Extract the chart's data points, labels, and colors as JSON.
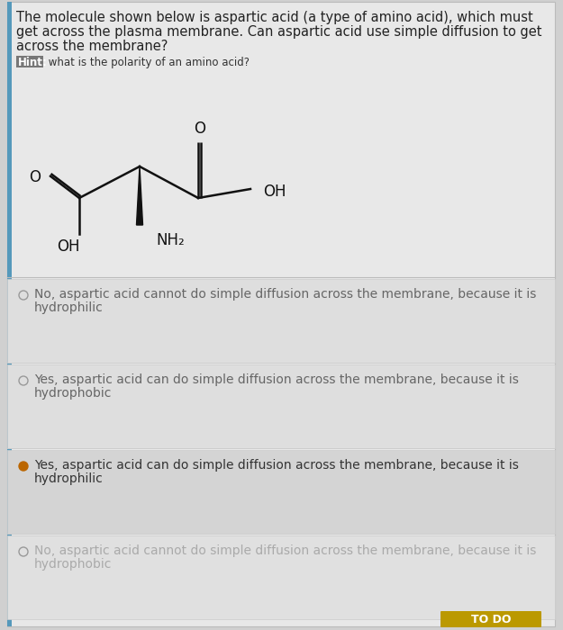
{
  "bg_color": "#d0d0d0",
  "card_bg": "#e8e8e8",
  "white_area_bg": "#e8e8e8",
  "option1_bg": "#dedede",
  "option2_bg": "#dedede",
  "option3_bg": "#d4d4d4",
  "option4_bg": "#e0e0e0",
  "left_bar_color": "#5599bb",
  "question_line1": "The molecule shown below is aspartic acid (a type of amino acid), which must",
  "question_line2": "get across the plasma membrane. Can aspartic acid use simple diffusion to get",
  "question_line3": "across the membrane?",
  "hint_label": "Hint:",
  "hint_rest": " what is the polarity of an amino acid?",
  "hint_bg": "#777777",
  "options": [
    {
      "line1": "No, aspartic acid cannot do simple diffusion across the membrane, because it is",
      "line2": "hydrophilic",
      "selected": false,
      "text_color": "#666666"
    },
    {
      "line1": "Yes, aspartic acid can do simple diffusion across the membrane, because it is",
      "line2": "hydrophobic",
      "selected": false,
      "text_color": "#666666"
    },
    {
      "line1": "Yes, aspartic acid can do simple diffusion across the membrane, because it is",
      "line2": "hydrophilic",
      "selected": true,
      "text_color": "#333333"
    },
    {
      "line1": "No, aspartic acid cannot do simple diffusion across the membrane, because it is",
      "line2": "hydrophobic",
      "selected": false,
      "text_color": "#aaaaaa"
    }
  ],
  "todo_text": "TO DO",
  "todo_bg": "#bb9900",
  "q_fontsize": 10.5,
  "opt_fontsize": 10.0,
  "mol_black": "#111111"
}
